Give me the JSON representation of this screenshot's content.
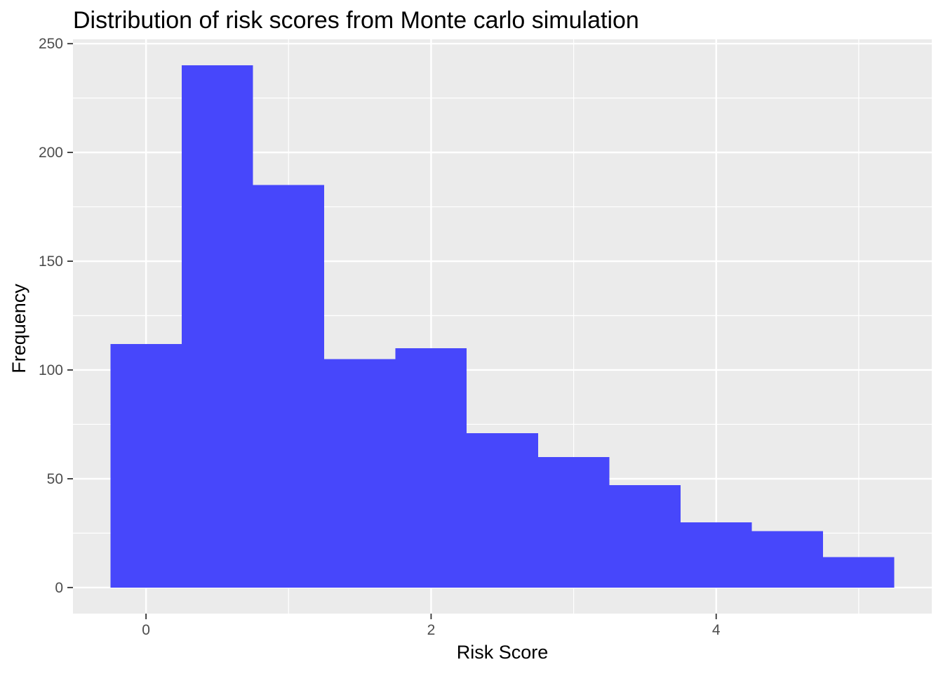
{
  "chart_data": {
    "type": "bar",
    "subtype": "histogram",
    "title": "Distribution of risk scores from Monte carlo simulation",
    "xlabel": "Risk Score",
    "ylabel": "Frequency",
    "bin_width": 0.5,
    "bins": [
      {
        "x_start": -0.25,
        "x_end": 0.25,
        "count": 112
      },
      {
        "x_start": 0.25,
        "x_end": 0.75,
        "count": 240
      },
      {
        "x_start": 0.75,
        "x_end": 1.25,
        "count": 185
      },
      {
        "x_start": 1.25,
        "x_end": 1.75,
        "count": 105
      },
      {
        "x_start": 1.75,
        "x_end": 2.25,
        "count": 110
      },
      {
        "x_start": 2.25,
        "x_end": 2.75,
        "count": 71
      },
      {
        "x_start": 2.75,
        "x_end": 3.25,
        "count": 60
      },
      {
        "x_start": 3.25,
        "x_end": 3.75,
        "count": 47
      },
      {
        "x_start": 3.75,
        "x_end": 4.25,
        "count": 30
      },
      {
        "x_start": 4.25,
        "x_end": 4.75,
        "count": 26
      },
      {
        "x_start": 4.75,
        "x_end": 5.25,
        "count": 14
      }
    ],
    "xlim": [
      -0.5125,
      5.5125
    ],
    "ylim": [
      -12,
      252
    ],
    "x_ticks": [
      0,
      2,
      4
    ],
    "x_tick_labels": [
      "0",
      "2",
      "4"
    ],
    "x_minor_grid": [
      1,
      3,
      5
    ],
    "y_ticks": [
      0,
      50,
      100,
      150,
      200,
      250
    ],
    "y_tick_labels": [
      "0",
      "50",
      "100",
      "150",
      "200",
      "250"
    ],
    "y_minor_grid": [
      25,
      75,
      125,
      175,
      225
    ],
    "grid": true,
    "legend": "none",
    "colors": {
      "bar_fill": "#4747fb",
      "panel_background": "#ebebeb",
      "grid_line": "#ffffff",
      "tick_label": "#4d4d4d",
      "tick_mark": "#333333"
    }
  }
}
